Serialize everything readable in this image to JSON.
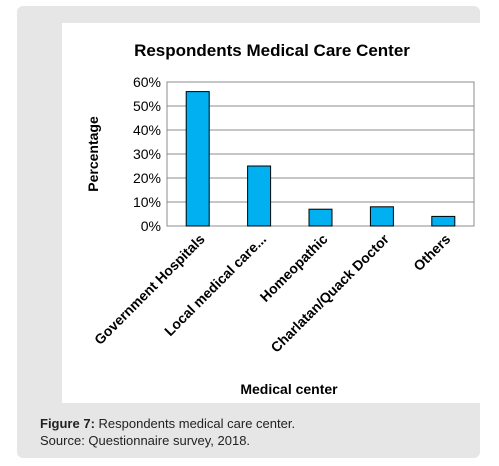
{
  "figure": {
    "label": "Figure 7:",
    "caption_text": " Respondents medical care center.",
    "source_text": "Source: Questionnaire survey, 2018."
  },
  "chart_data": {
    "type": "bar",
    "title": "Respondents Medical Care Center",
    "xlabel": "Medical center",
    "ylabel": "Percentage",
    "categories": [
      "Government Hospitals",
      "Local medical care...",
      "Homeopathic",
      "Charlatan/Quack Doctor",
      "Others"
    ],
    "values": [
      56,
      25,
      7,
      8,
      4
    ],
    "ylim": [
      0,
      60
    ],
    "yticks": [
      "0%",
      "10%",
      "20%",
      "30%",
      "40%",
      "50%",
      "60%"
    ],
    "grid": true,
    "bar_color": "#00b0f0"
  }
}
